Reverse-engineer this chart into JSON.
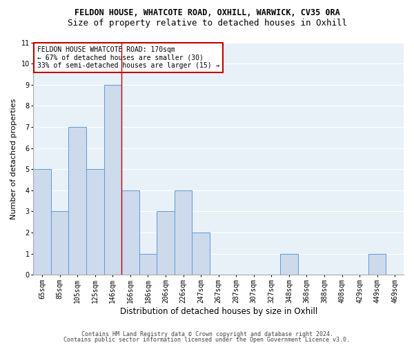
{
  "title1": "FELDON HOUSE, WHATCOTE ROAD, OXHILL, WARWICK, CV35 0RA",
  "title2": "Size of property relative to detached houses in Oxhill",
  "xlabel": "Distribution of detached houses by size in Oxhill",
  "ylabel": "Number of detached properties",
  "categories": [
    "65sqm",
    "85sqm",
    "105sqm",
    "125sqm",
    "146sqm",
    "166sqm",
    "186sqm",
    "206sqm",
    "226sqm",
    "247sqm",
    "267sqm",
    "287sqm",
    "307sqm",
    "327sqm",
    "348sqm",
    "368sqm",
    "388sqm",
    "408sqm",
    "429sqm",
    "449sqm",
    "469sqm"
  ],
  "values": [
    5,
    3,
    7,
    5,
    9,
    4,
    1,
    3,
    4,
    2,
    0,
    0,
    0,
    0,
    1,
    0,
    0,
    0,
    0,
    1,
    0
  ],
  "bar_color": "#ccdaec",
  "bar_edge_color": "#5b9bd5",
  "red_line_x": 4.5,
  "red_line_color": "#c00000",
  "ylim": [
    0,
    11
  ],
  "yticks": [
    0,
    1,
    2,
    3,
    4,
    5,
    6,
    7,
    8,
    9,
    10,
    11
  ],
  "annotation_box_color": "#ffffff",
  "annotation_box_edge": "#c00000",
  "annotation_line1": "FELDON HOUSE WHATCOTE ROAD: 170sqm",
  "annotation_line2": "← 67% of detached houses are smaller (30)",
  "annotation_line3": "33% of semi-detached houses are larger (15) →",
  "footer1": "Contains HM Land Registry data © Crown copyright and database right 2024.",
  "footer2": "Contains public sector information licensed under the Open Government Licence v3.0.",
  "plot_bg_color": "#e8f0f8",
  "fig_bg_color": "#ffffff",
  "grid_color": "#ffffff",
  "title1_fontsize": 8.5,
  "title2_fontsize": 9,
  "xlabel_fontsize": 8.5,
  "ylabel_fontsize": 8,
  "tick_fontsize": 7,
  "annotation_fontsize": 7,
  "footer_fontsize": 6
}
